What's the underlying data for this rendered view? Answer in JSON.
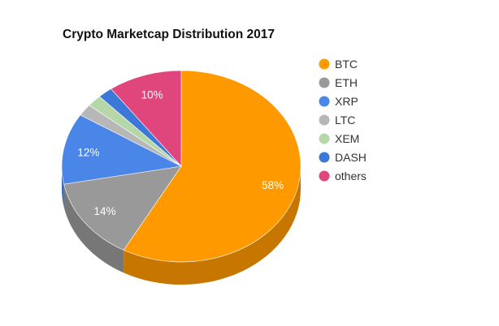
{
  "chart_data": {
    "type": "pie",
    "title": "Crypto Marketcap Distribution 2017",
    "style": "3d",
    "legend_position": "right",
    "slices": [
      {
        "label": "BTC",
        "value": 58,
        "display": "58%",
        "color": "#ff9900"
      },
      {
        "label": "ETH",
        "value": 14,
        "display": "14%",
        "color": "#999999"
      },
      {
        "label": "XRP",
        "value": 12,
        "display": "12%",
        "color": "#4a86e8"
      },
      {
        "label": "LTC",
        "value": 2,
        "display": "",
        "color": "#b7b7b7"
      },
      {
        "label": "XEM",
        "value": 2,
        "display": "",
        "color": "#b6d7a8"
      },
      {
        "label": "DASH",
        "value": 2,
        "display": "",
        "color": "#3c78d8"
      },
      {
        "label": "others",
        "value": 10,
        "display": "10%",
        "color": "#e0457b"
      }
    ]
  }
}
